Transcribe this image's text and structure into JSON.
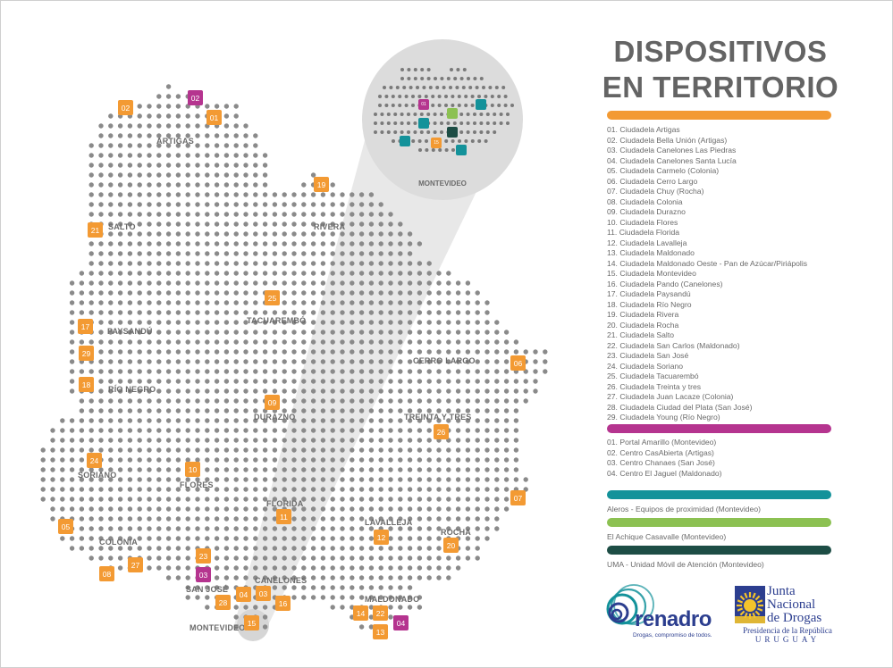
{
  "title_line1": "DISPOSITIVOS",
  "title_line2": "EN TERRITORIO",
  "departments": [
    "ARTIGAS",
    "SALTO",
    "RIVERA",
    "TACUAREMBÓ",
    "PAYSANDÚ",
    "CERRO LARGO",
    "RÍO NEGRO",
    "DURAZNO",
    "TREINTA Y TRES",
    "SORIANO",
    "FLORES",
    "FLORIDA",
    "LAVALLEJA",
    "ROCHA",
    "COLONIA",
    "SAN JOSÉ",
    "CANELONES",
    "MALDONADO",
    "MONTEVIDEO"
  ],
  "zoom_label": "MONTEVIDEO",
  "ciudadelas": [
    "01. Ciudadela Artigas",
    "02. Ciudadela Bella Unión (Artigas)",
    "03. Ciudadela Canelones Las Piedras",
    "04. Ciudadela Canelones Santa Lucía",
    "05. Ciudadela Carmelo (Colonia)",
    "06. Ciudadela Cerro Largo",
    "07. Ciudadela Chuy (Rocha)",
    "08. Ciudadela Colonia",
    "09. Ciudadela Durazno",
    "10. Ciudadela Flores",
    "11. Ciudadela Florida",
    "12. Ciudadela Lavalleja",
    "13. Ciudadela Maldonado",
    "14. Ciudadela Maldonado Oeste - Pan de Azúcar/Piriápolis",
    "15. Ciudadela Montevideo",
    "16. Ciudadela Pando (Canelones)",
    "17. Ciudadela Paysandú",
    "18. Ciudadela Río Negro",
    "19. Ciudadela Rivera",
    "20. Ciudadela Rocha",
    "21. Ciudadela Salto",
    "22. Ciudadela San Carlos (Maldonado)",
    "23. Ciudadela San José",
    "24. Ciudadela Soriano",
    "25. Ciudadela Tacuarembó",
    "26. Ciudadela Treinta y tres",
    "27. Ciudadela Juan Lacaze (Colonia)",
    "28. Ciudadela Ciudad del Plata (San José)",
    "29. Ciudadela Young (Río Negro)"
  ],
  "centros": [
    "01. Portal Amarillo (Montevideo)",
    "02. Centro CasAbierta (Artigas)",
    "03. Centro Chanaes (San José)",
    "04. Centro El Jaguel (Maldonado)"
  ],
  "aleros": "Aleros - Equipos de proximidad (Montevideo)",
  "achique": "El Achique Casavalle (Montevideo)",
  "uma": "UMA - Unidad Móvil de Atención (Montevideo)",
  "colors": {
    "orange": "#f39a33",
    "magenta": "#b5348f",
    "teal": "#13929a",
    "green": "#8cc152",
    "dark_green": "#1d4d45",
    "dots": "#8a8a8a",
    "title": "#646464"
  },
  "markers": [
    {
      "label": "01",
      "color": "orange"
    },
    {
      "label": "02",
      "color": "orange"
    },
    {
      "label": "02",
      "color": "magenta"
    },
    {
      "label": "19",
      "color": "orange"
    },
    {
      "label": "21",
      "color": "orange"
    },
    {
      "label": "25",
      "color": "orange"
    },
    {
      "label": "17",
      "color": "orange"
    },
    {
      "label": "29",
      "color": "orange"
    },
    {
      "label": "18",
      "color": "orange"
    },
    {
      "label": "06",
      "color": "orange"
    },
    {
      "label": "09",
      "color": "orange"
    },
    {
      "label": "26",
      "color": "orange"
    },
    {
      "label": "24",
      "color": "orange"
    },
    {
      "label": "10",
      "color": "orange"
    },
    {
      "label": "07",
      "color": "orange"
    },
    {
      "label": "11",
      "color": "orange"
    },
    {
      "label": "05",
      "color": "orange"
    },
    {
      "label": "12",
      "color": "orange"
    },
    {
      "label": "20",
      "color": "orange"
    },
    {
      "label": "23",
      "color": "orange"
    },
    {
      "label": "27",
      "color": "orange"
    },
    {
      "label": "08",
      "color": "orange"
    },
    {
      "label": "03",
      "color": "magenta"
    },
    {
      "label": "04",
      "color": "orange"
    },
    {
      "label": "03",
      "color": "orange"
    },
    {
      "label": "28",
      "color": "orange"
    },
    {
      "label": "16",
      "color": "orange"
    },
    {
      "label": "15",
      "color": "orange"
    },
    {
      "label": "14",
      "color": "orange"
    },
    {
      "label": "22",
      "color": "orange"
    },
    {
      "label": "04",
      "color": "magenta"
    },
    {
      "label": "13",
      "color": "orange"
    }
  ],
  "zoom_markers": [
    {
      "label": "01",
      "color": "magenta"
    },
    {
      "label": "",
      "color": "teal"
    },
    {
      "label": "",
      "color": "green"
    },
    {
      "label": "",
      "color": "teal"
    },
    {
      "label": "",
      "color": "teal"
    },
    {
      "label": "",
      "color": "dark_green"
    },
    {
      "label": "",
      "color": "teal"
    },
    {
      "label": "15",
      "color": "orange"
    },
    {
      "label": "",
      "color": "teal"
    }
  ],
  "logos": {
    "renadro_word": "renadro",
    "renadro_tag": "Drogas, compromiso de todos.",
    "jnd_line1": "Junta",
    "jnd_line2": "Nacional",
    "jnd_line3": "de Drogas",
    "jnd_sub": "Presidencia de la República",
    "jnd_country": "URUGUAY"
  }
}
